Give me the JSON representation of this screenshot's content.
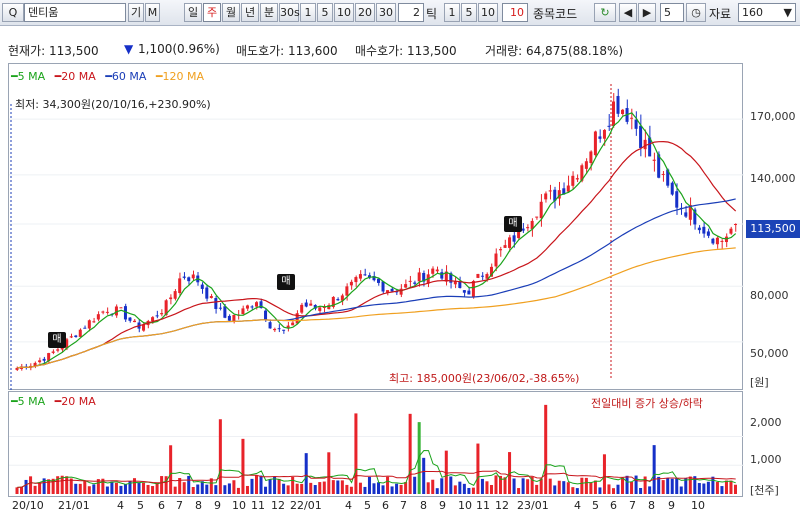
{
  "toolbar": {
    "search_label": "Q",
    "code_label": "코드",
    "stock_name": "덴티움",
    "btn_ga": "기",
    "btn_m": "M",
    "periods": [
      "일",
      "주",
      "월",
      "년",
      "분",
      "30s",
      "1",
      "5",
      "10",
      "20",
      "30"
    ],
    "active_period": "주",
    "tick_value": "2",
    "tick_label": "틱",
    "tick_buttons": [
      "1",
      "5",
      "10"
    ],
    "tick_input": "10",
    "code_label2": "종목코드",
    "step_input": "5",
    "data_label": "자료",
    "data_count": "160"
  },
  "quote": {
    "price_label": "현재가: 113,500",
    "change": "1,100(0.96%)",
    "ask_label": "매도호가: 113,600",
    "bid_label": "매수호가: 113,500",
    "volume_label": "거래량: 64,875(88.18%)"
  },
  "legend": {
    "ma5": "5 MA",
    "ma20": "20 MA",
    "ma60": "60 MA",
    "ma120": "120 MA",
    "vol_ma5": "5 MA",
    "vol_ma20": "20 MA",
    "vol_note": "전일대비 증가 상승/하락"
  },
  "annotations": {
    "low": "최저: 34,300원(20/10/16,+230.90%)",
    "high": "최고: 185,000원(23/06/02,-38.65%)",
    "tag": "매"
  },
  "colors": {
    "up": "#e8232a",
    "down": "#1630c8",
    "ma5": "#1ba31b",
    "ma20": "#c8151b",
    "ma60": "#1b3eb7",
    "ma120": "#f0a020"
  },
  "chart_data": {
    "type": "candlestick",
    "price_axis": {
      "ticks": [
        "170,000",
        "140,000",
        "113,500",
        "80,000",
        "50,000"
      ],
      "unit": "[원]",
      "last": "113,500"
    },
    "volume_axis": {
      "ticks": [
        "2,000",
        "1,000"
      ],
      "unit": "[천주]"
    },
    "x_labels": [
      "20/10",
      "21/01",
      "4",
      "5",
      "6",
      "7",
      "8",
      "9",
      "10",
      "11",
      "12",
      "22/01",
      "4",
      "5",
      "6",
      "7",
      "8",
      "9",
      "10",
      "11",
      "12",
      "23/01",
      "4",
      "5",
      "6",
      "7",
      "8",
      "9",
      "10"
    ],
    "close_approx": [
      36000,
      38000,
      42000,
      48000,
      55000,
      62000,
      68000,
      66000,
      58000,
      62000,
      70000,
      86000,
      84000,
      72000,
      62000,
      66000,
      73000,
      58000,
      55000,
      70000,
      68000,
      72000,
      78000,
      84000,
      82000,
      78000,
      80000,
      85000,
      90000,
      82000,
      76000,
      86000,
      96000,
      104000,
      115000,
      125000,
      130000,
      138000,
      150000,
      165000,
      180000,
      172000,
      155000,
      138000,
      125000,
      120000,
      110000,
      104000,
      113500
    ]
  }
}
